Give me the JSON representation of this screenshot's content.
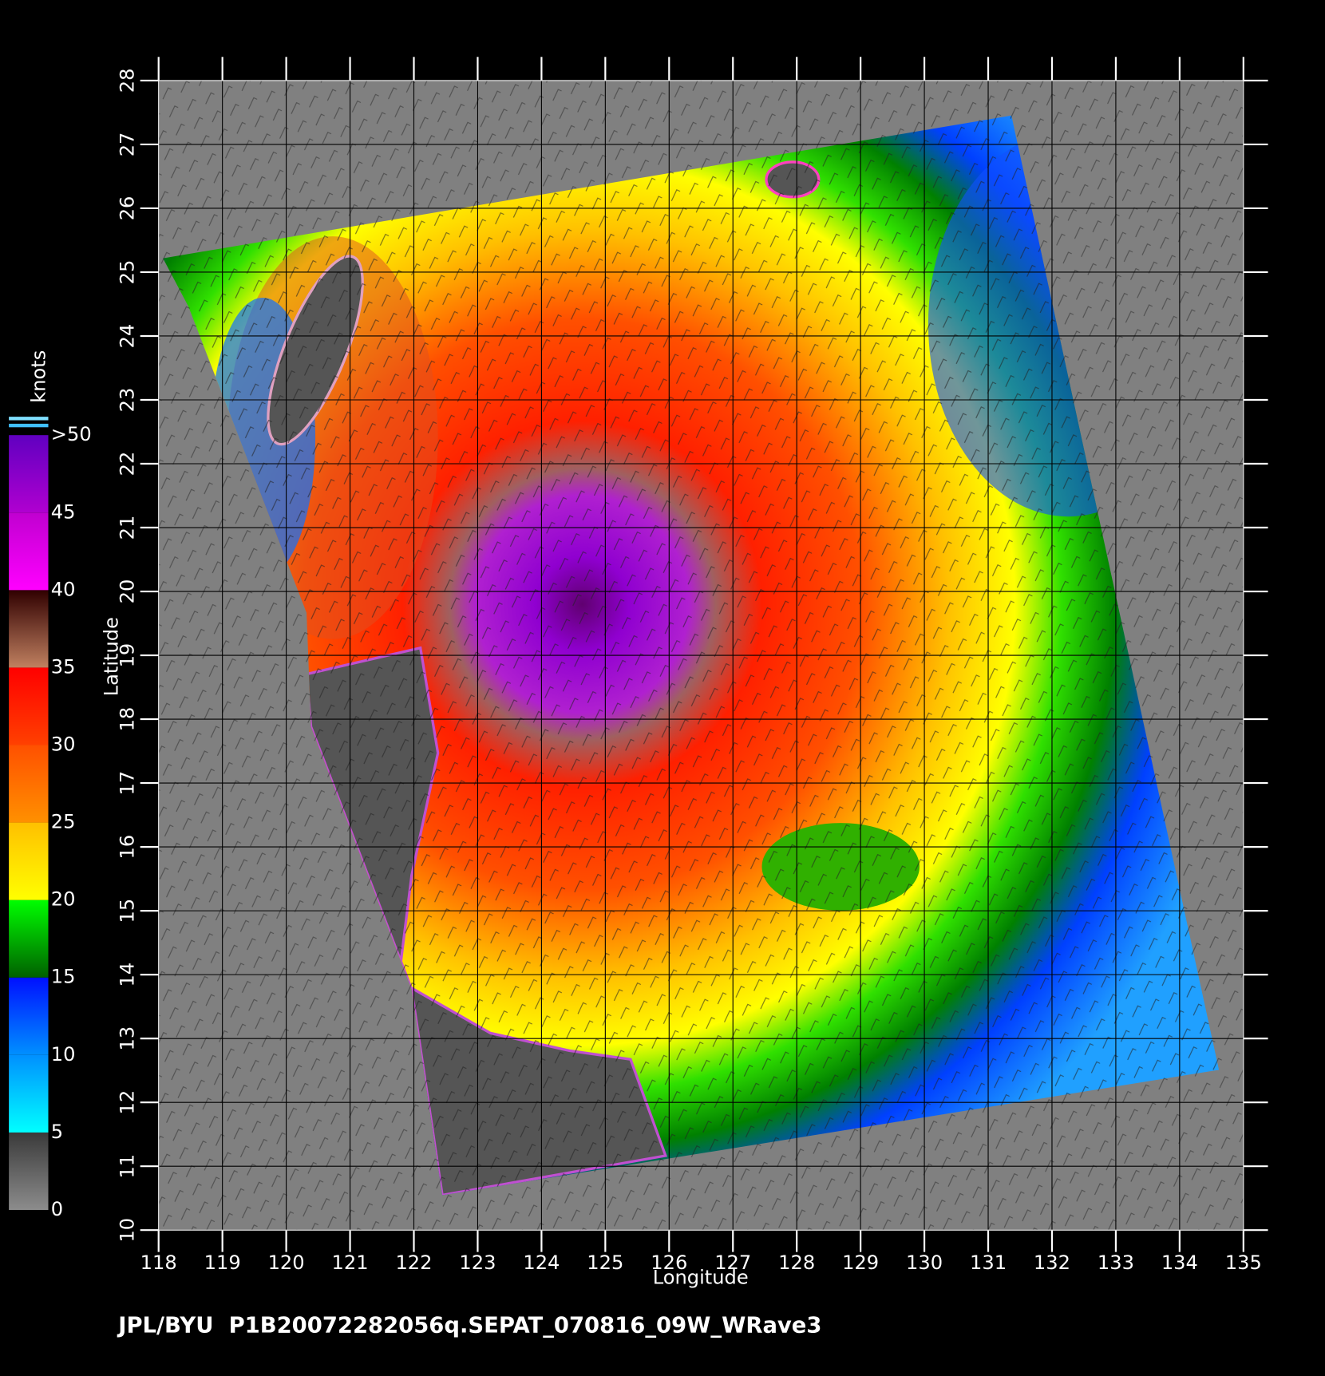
{
  "chart_data": {
    "type": "wind-map",
    "x_label": "Longitude",
    "y_label": "Latitude",
    "xlim": [
      118,
      135
    ],
    "xticks": [
      118,
      119,
      120,
      121,
      122,
      123,
      124,
      125,
      126,
      127,
      128,
      129,
      130,
      131,
      132,
      133,
      134,
      135
    ],
    "ylim": [
      10,
      28
    ],
    "yticks": [
      10,
      11,
      12,
      13,
      14,
      15,
      16,
      17,
      18,
      19,
      20,
      21,
      22,
      23,
      24,
      25,
      26,
      27,
      28
    ],
    "grid": true,
    "colorbar": {
      "title": "knots",
      "ticks": [
        0,
        5,
        10,
        15,
        20,
        25,
        30,
        35,
        40,
        45,
        {
          "value": 50,
          "label": ">50"
        }
      ],
      "bands": [
        [
          "#8c8c8c",
          "#3a3a3a"
        ],
        [
          "#00ffff",
          "#0090ff"
        ],
        [
          "#0090ff",
          "#0010ff"
        ],
        [
          "#006000",
          "#00ff00"
        ],
        [
          "#ffff00",
          "#ffc000"
        ],
        [
          "#ff9000",
          "#ff5000"
        ],
        [
          "#ff4000",
          "#ff0000"
        ],
        [
          "#c08060",
          "#300000"
        ],
        [
          "#ff00ff",
          "#c000d0"
        ],
        [
          "#b000d0",
          "#6000c0"
        ]
      ]
    },
    "footer": "JPL/BYU  P1B20072282056q.SEPAT_070816_09W_WRave3"
  }
}
